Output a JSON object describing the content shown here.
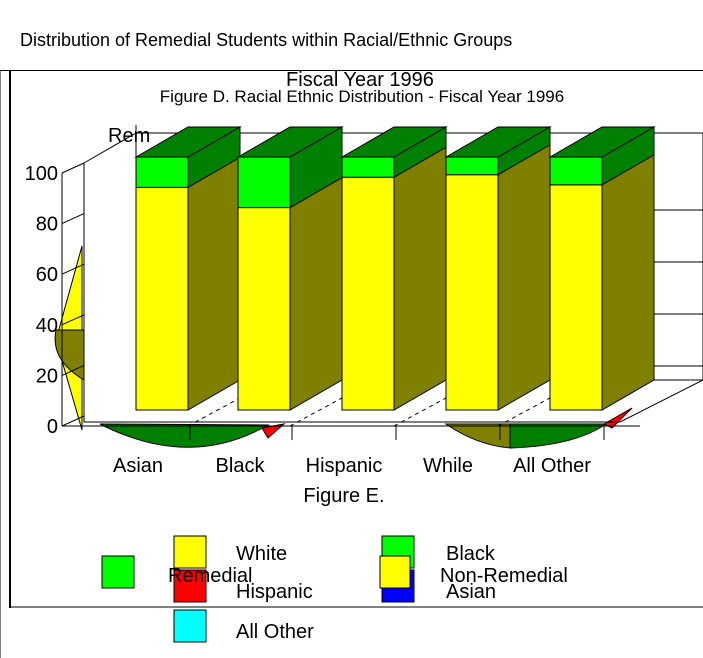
{
  "header": {
    "title": "Distribution of Remedial Students within Racial/Ethnic Groups"
  },
  "figure_d": {
    "overlay_title": "Fiscal Year 1996",
    "title": "Figure D. Racial Ethnic Distribution - Fiscal Year 1996",
    "partial_label": "Rem"
  },
  "figure_e": {
    "title": "Figure E."
  },
  "colors": {
    "yellow": "#ffff00",
    "yellow_dark": "#808000",
    "green": "#00ff00",
    "green_dark": "#008000",
    "red": "#ff0000",
    "blue": "#0000ff",
    "cyan": "#00ffff"
  },
  "chart_data": [
    {
      "type": "bar",
      "title": "Figure D. Racial Ethnic Distribution - Fiscal Year 1996",
      "stacked": true,
      "three_d": true,
      "categories": [
        "Asian",
        "Black",
        "Hispanic",
        "While",
        "All Other"
      ],
      "series": [
        {
          "name": "Non-Remedial",
          "values": [
            88,
            80,
            92,
            93,
            89
          ],
          "color": "#ffff00"
        },
        {
          "name": "Remedial",
          "values": [
            12,
            20,
            8,
            7,
            11
          ],
          "color": "#00ff00"
        }
      ],
      "yticks": [
        "0",
        "20",
        "40",
        "60",
        "80",
        "100"
      ],
      "ylim": [
        0,
        100
      ],
      "legend": [
        "Remedial",
        "Non-Remedial"
      ],
      "legend_position": "bottom"
    },
    {
      "type": "pie",
      "title": "Figure E.",
      "legend": [
        "White",
        "Black",
        "Hispanic",
        "Asian",
        "All Other"
      ],
      "legend_colors": [
        "#ffff00",
        "#00ff00",
        "#ff0000",
        "#0000ff",
        "#00ffff"
      ],
      "legend_position": "bottom"
    }
  ]
}
